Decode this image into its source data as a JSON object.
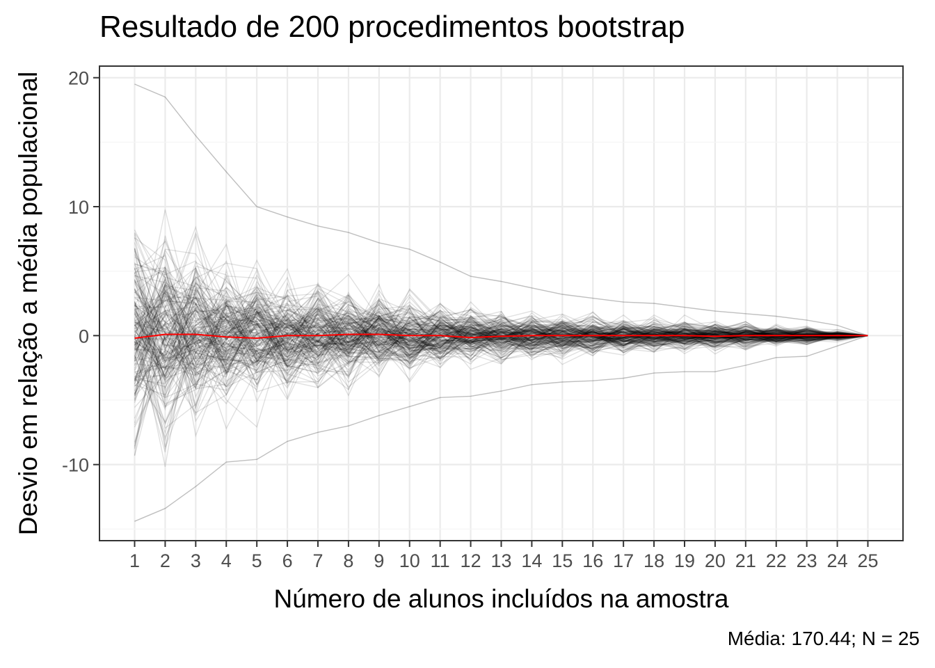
{
  "chart_data": {
    "type": "line",
    "title": "Resultado de 200 procedimentos bootstrap",
    "xlabel": "Número de alunos incluídos na amostra",
    "ylabel": "Desvio em relação a média populacional",
    "caption": "Média: 170.44; N = 25",
    "x": [
      1,
      2,
      3,
      4,
      5,
      6,
      7,
      8,
      9,
      10,
      11,
      12,
      13,
      14,
      15,
      16,
      17,
      18,
      19,
      20,
      21,
      22,
      23,
      24,
      25
    ],
    "x_tick_labels": [
      "1",
      "2",
      "3",
      "4",
      "5",
      "6",
      "7",
      "8",
      "9",
      "10",
      "11",
      "12",
      "13",
      "14",
      "15",
      "16",
      "17",
      "18",
      "19",
      "20",
      "21",
      "22",
      "23",
      "24",
      "25"
    ],
    "y_ticks": [
      -10,
      0,
      10,
      20
    ],
    "y_tick_labels": [
      "-10",
      "0",
      "10",
      "20"
    ],
    "xlim": [
      -0.15,
      26.15
    ],
    "ylim": [
      -15.9,
      20.9
    ],
    "grid": true,
    "series": [
      {
        "role": "bootstrap-runs",
        "count": 200,
        "color": "#000000",
        "opacity": 0.12,
        "upper_envelope": [
          19.5,
          18.5,
          15.5,
          12.7,
          10.0,
          9.2,
          8.5,
          8.0,
          7.2,
          6.7,
          5.7,
          4.6,
          4.2,
          3.7,
          3.2,
          2.9,
          2.6,
          2.5,
          2.2,
          1.9,
          1.7,
          1.5,
          1.2,
          0.8,
          0.0
        ],
        "lower_envelope": [
          -14.4,
          -13.4,
          -11.7,
          -9.8,
          -9.6,
          -8.2,
          -7.5,
          -7.0,
          -6.2,
          -5.5,
          -4.8,
          -4.7,
          -4.3,
          -3.8,
          -3.6,
          -3.5,
          -3.3,
          -2.9,
          -2.8,
          -2.8,
          -2.3,
          -1.7,
          -1.6,
          -0.8,
          0.0
        ]
      },
      {
        "role": "mean-deviation",
        "color": "#ff0000",
        "values": [
          -0.2,
          0.1,
          0.1,
          -0.1,
          -0.2,
          0.0,
          0.0,
          0.1,
          0.1,
          0.0,
          0.0,
          -0.15,
          -0.05,
          0.0,
          0.0,
          0.0,
          0.0,
          0.0,
          0.0,
          -0.05,
          0.0,
          0.0,
          0.0,
          0.0,
          0.0
        ]
      }
    ]
  }
}
